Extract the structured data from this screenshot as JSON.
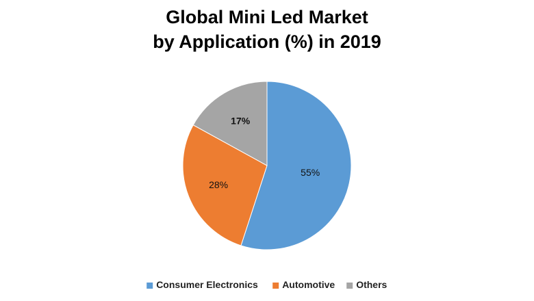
{
  "chart_data": {
    "type": "pie",
    "title": [
      "Global Mini Led Market",
      "by Application (%) in 2019"
    ],
    "series": [
      {
        "name": "Consumer Electronics",
        "value": 55,
        "label": "55%",
        "color": "#5b9bd5"
      },
      {
        "name": "Automotive",
        "value": 28,
        "label": "28%",
        "color": "#ed7d31"
      },
      {
        "name": "Others",
        "value": 17,
        "label": "17%",
        "color": "#a5a5a5"
      }
    ],
    "start_angle_deg": 0,
    "direction": "clockwise",
    "legend_position": "bottom"
  }
}
